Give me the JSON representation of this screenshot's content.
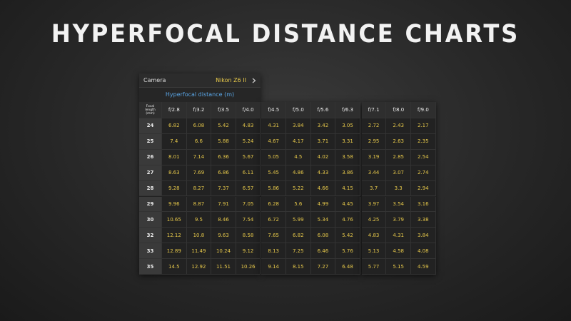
{
  "title": "HYPERFOCAL DISTANCE CHARTS",
  "camera": {
    "label": "Camera",
    "value": "Nikon Z6 II"
  },
  "subtitle": "Hyperfocal distance (m)",
  "table": {
    "row_header": "Focal length (mm)",
    "columns": [
      "f/2.8",
      "f/3.2",
      "f/3.5",
      "f/4.0",
      "f/4.5",
      "f/5.0",
      "f/5.6",
      "f/6.3",
      "f/7.1",
      "f/8.0",
      "f/9.0"
    ],
    "rows": [
      {
        "focal": 24,
        "values": [
          6.82,
          6.08,
          5.42,
          4.83,
          4.31,
          3.84,
          3.42,
          3.05,
          2.72,
          2.43,
          2.17
        ]
      },
      {
        "focal": 25,
        "values": [
          7.4,
          6.6,
          5.88,
          5.24,
          4.67,
          4.17,
          3.71,
          3.31,
          2.95,
          2.63,
          2.35
        ]
      },
      {
        "focal": 26,
        "values": [
          8.01,
          7.14,
          6.36,
          5.67,
          5.05,
          4.5,
          4.02,
          3.58,
          3.19,
          2.85,
          2.54
        ]
      },
      {
        "focal": 27,
        "values": [
          8.63,
          7.69,
          6.86,
          6.11,
          5.45,
          4.86,
          4.33,
          3.86,
          3.44,
          3.07,
          2.74
        ]
      },
      {
        "focal": 28,
        "values": [
          9.28,
          8.27,
          7.37,
          6.57,
          5.86,
          5.22,
          4.66,
          4.15,
          3.7,
          3.3,
          2.94
        ]
      },
      {
        "focal": 29,
        "values": [
          9.96,
          8.87,
          7.91,
          7.05,
          6.28,
          5.6,
          4.99,
          4.45,
          3.97,
          3.54,
          3.16
        ]
      },
      {
        "focal": 30,
        "values": [
          10.65,
          9.5,
          8.46,
          7.54,
          6.72,
          5.99,
          5.34,
          4.76,
          4.25,
          3.79,
          3.38
        ]
      },
      {
        "focal": 32,
        "values": [
          12.12,
          10.8,
          9.63,
          8.58,
          7.65,
          6.82,
          6.08,
          5.42,
          4.83,
          4.31,
          3.84
        ]
      },
      {
        "focal": 33,
        "values": [
          12.89,
          11.49,
          10.24,
          9.12,
          8.13,
          7.25,
          6.46,
          5.76,
          5.13,
          4.58,
          4.08
        ]
      },
      {
        "focal": 35,
        "values": [
          14.5,
          12.92,
          11.51,
          10.26,
          9.14,
          8.15,
          7.27,
          6.48,
          5.77,
          5.15,
          4.59
        ]
      }
    ]
  }
}
